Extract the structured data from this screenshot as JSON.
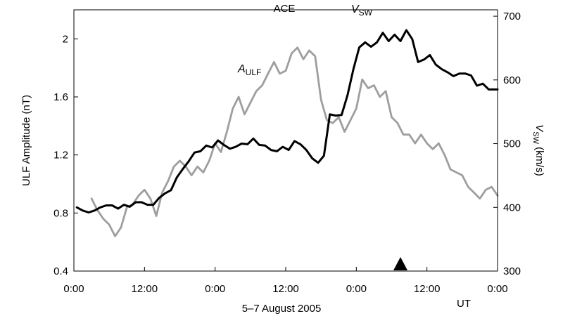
{
  "chart_data": {
    "type": "line",
    "title": "ACE",
    "xlabel": "5–7 August 2005",
    "xunit_label": "UT",
    "x_ticks": [
      "0:00",
      "12:00",
      "0:00",
      "12:00",
      "0:00",
      "12:00",
      "0:00"
    ],
    "x_tick_hours": [
      0,
      12,
      24,
      36,
      48,
      60,
      72
    ],
    "xlim": [
      0,
      72
    ],
    "y_left": {
      "label": "ULF Amplitude (nT)",
      "lim": [
        0.4,
        2.2
      ],
      "ticks": [
        "0.4",
        "0.8",
        "1.2",
        "1.6",
        "2"
      ],
      "tick_values": [
        0.4,
        0.8,
        1.2,
        1.6,
        2.0
      ]
    },
    "y_right": {
      "label_main": "V",
      "label_sub": "SW",
      "label_unit": " (km/s)",
      "lim": [
        300,
        710
      ],
      "ticks": [
        "300",
        "400",
        "500",
        "600",
        "700"
      ],
      "tick_values": [
        300,
        400,
        500,
        600,
        700
      ]
    },
    "series": [
      {
        "name": "A_ULF",
        "label_main": "A",
        "label_sub": "ULF",
        "axis": "left",
        "color": "#9e9e9e",
        "x": [
          3,
          4,
          5,
          6,
          7,
          8,
          9,
          10,
          11,
          12,
          13,
          14,
          15,
          16,
          17,
          18,
          19,
          20,
          21,
          22,
          23,
          24,
          25,
          26,
          27,
          28,
          29,
          30,
          31,
          32,
          33,
          34,
          35,
          36,
          37,
          38,
          39,
          40,
          41,
          42,
          43,
          44,
          45,
          46,
          47,
          48,
          49,
          50,
          51,
          52,
          53,
          54,
          55,
          56,
          57,
          58,
          59,
          60,
          61,
          62,
          63,
          64,
          65,
          66,
          67,
          68,
          69,
          70,
          71,
          72
        ],
        "values": [
          0.9,
          0.82,
          0.76,
          0.72,
          0.64,
          0.7,
          0.84,
          0.86,
          0.92,
          0.96,
          0.9,
          0.78,
          0.94,
          1.02,
          1.12,
          1.16,
          1.12,
          1.06,
          1.12,
          1.08,
          1.16,
          1.28,
          1.22,
          1.36,
          1.52,
          1.6,
          1.48,
          1.56,
          1.64,
          1.68,
          1.76,
          1.84,
          1.76,
          1.78,
          1.9,
          1.94,
          1.86,
          1.92,
          1.88,
          1.58,
          1.44,
          1.42,
          1.46,
          1.36,
          1.44,
          1.52,
          1.72,
          1.66,
          1.68,
          1.6,
          1.64,
          1.46,
          1.42,
          1.34,
          1.34,
          1.28,
          1.34,
          1.28,
          1.24,
          1.28,
          1.2,
          1.1,
          1.08,
          1.06,
          0.98,
          0.94,
          0.9,
          0.96,
          0.98,
          0.92
        ]
      },
      {
        "name": "V_SW",
        "label_main": "V",
        "label_sub": "SW",
        "axis": "right",
        "color": "#000000",
        "x": [
          0.5,
          1.5,
          2.5,
          3.5,
          4.5,
          5.5,
          6.5,
          7.5,
          8.5,
          9.5,
          10.5,
          11.5,
          12.5,
          13.5,
          14.5,
          15.5,
          16.5,
          17.5,
          18.5,
          19.5,
          20.5,
          21.5,
          22.5,
          23.5,
          24.5,
          25.5,
          26.5,
          27.5,
          28.5,
          29.5,
          30.5,
          31.5,
          32.5,
          33.5,
          34.5,
          35.5,
          36.5,
          37.5,
          38.5,
          39.5,
          40.5,
          41.5,
          42.5,
          43.5,
          44.5,
          45.5,
          46.5,
          47.5,
          48.5,
          49.5,
          50.5,
          51.5,
          52.5,
          53.5,
          54.5,
          55.5,
          56.5,
          57.5,
          58.5,
          59.5,
          60.5,
          61.5,
          62.5,
          63.5,
          64.5,
          65.5,
          66.5,
          67.5,
          68.5,
          69.5,
          70.5,
          71.5,
          72
        ],
        "values": [
          400,
          395,
          392,
          395,
          400,
          403,
          403,
          398,
          404,
          401,
          408,
          408,
          404,
          404,
          415,
          422,
          427,
          447,
          460,
          472,
          486,
          488,
          497,
          494,
          505,
          498,
          492,
          495,
          500,
          499,
          508,
          498,
          497,
          490,
          488,
          495,
          490,
          504,
          499,
          490,
          477,
          470,
          481,
          546,
          544,
          545,
          576,
          617,
          651,
          659,
          652,
          659,
          674,
          661,
          671,
          661,
          678,
          664,
          628,
          632,
          639,
          624,
          617,
          612,
          606,
          610,
          610,
          607,
          591,
          594,
          585,
          585,
          585
        ]
      }
    ],
    "annotations": [
      {
        "type": "marker",
        "shape": "triangle-up",
        "x_hours": 55.5,
        "color": "#000000"
      }
    ]
  }
}
